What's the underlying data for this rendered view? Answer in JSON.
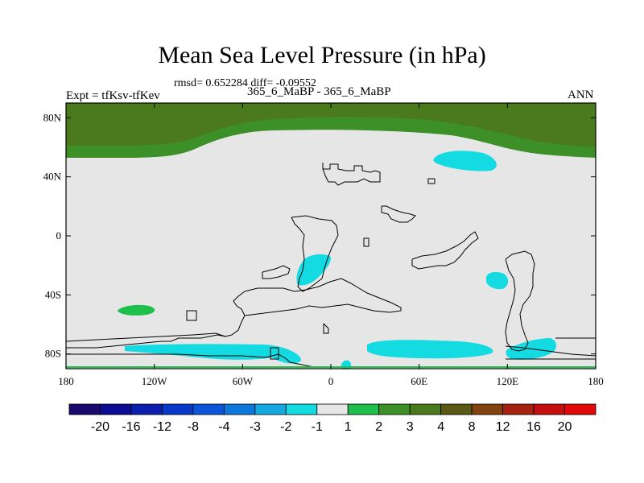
{
  "chart_data": {
    "type": "contour-map",
    "title": "Mean Sea Level Pressure (in hPa)",
    "stats_line": "rmsd= 0.652284 diff= -0.09552",
    "stats": {
      "rmsd": 0.652284,
      "diff": -0.09552
    },
    "left_label": "Expt = tfKsv-tfKev",
    "center_label": "365_6_MaBP - 365_6_MaBP",
    "right_label": "ANN",
    "x_ticks": [
      "180",
      "120W",
      "60W",
      "0",
      "60E",
      "120E",
      "180"
    ],
    "x_tick_values": [
      -180,
      -120,
      -60,
      0,
      60,
      120,
      180
    ],
    "y_ticks": [
      "80N",
      "40N",
      "0",
      "40S",
      "80S"
    ],
    "y_tick_values": [
      80,
      40,
      0,
      -40,
      -80
    ],
    "xlim": [
      -180,
      180
    ],
    "ylim": [
      -90,
      90
    ],
    "colorbar": {
      "labels": [
        "-20",
        "-16",
        "-12",
        "-8",
        "-4",
        "-3",
        "-2",
        "-1",
        "1",
        "2",
        "3",
        "4",
        "8",
        "12",
        "16",
        "20"
      ],
      "colors": [
        "#1a0a6e",
        "#0c0c94",
        "#0b1ead",
        "#0838c8",
        "#0a55d9",
        "#0d78dc",
        "#14a9e1",
        "#13dbe1",
        "#e6e6e6",
        "#1ebf4a",
        "#3d8f28",
        "#4a7a1c",
        "#5a5a14",
        "#82420d",
        "#a4220f",
        "#c50f0f",
        "#e40808"
      ]
    },
    "regions": [
      {
        "name": "arctic-strong",
        "value_range": "3 to 4",
        "color": "#4a7a1c"
      },
      {
        "name": "arctic-band",
        "value_range": "2 to 3",
        "color": "#3d8f28"
      },
      {
        "name": "south-pacific-blob",
        "value_range": "1 to 2",
        "color": "#1ebf4a"
      },
      {
        "name": "north-pacific-low",
        "value_range": "-2 to -1",
        "color": "#13dbe1"
      },
      {
        "name": "south-atlantic-low",
        "value_range": "-2 to -1",
        "color": "#13dbe1"
      },
      {
        "name": "indian-ocean-low",
        "value_range": "-2 to -1",
        "color": "#13dbe1"
      },
      {
        "name": "southern-ocean-lows",
        "value_range": "-2 to -1",
        "color": "#13dbe1"
      }
    ],
    "background_value_range": "-1 to 1",
    "background_color": "#e6e6e6"
  }
}
